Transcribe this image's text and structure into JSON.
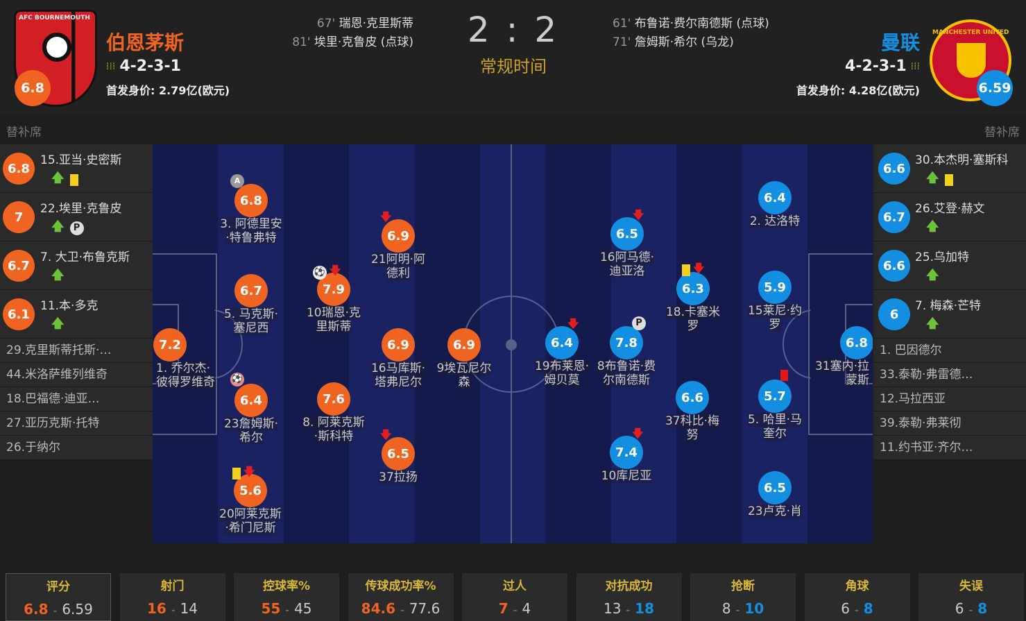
{
  "home": {
    "name": "伯恩茅斯",
    "formation": "4-2-3-1",
    "value": "首发身价: 2.79亿(欧元)",
    "rating": "6.8",
    "crest_text": "AFC BOURNEMOUTH",
    "color": "#ef6420",
    "goals": [
      {
        "min": "67'",
        "text": "瑞恩·克里斯蒂"
      },
      {
        "min": "81'",
        "text": "埃里·克鲁皮 (点球)"
      }
    ]
  },
  "away": {
    "name": "曼联",
    "formation": "4-2-3-1",
    "value": "首发身价: 4.28亿(欧元)",
    "rating": "6.59",
    "crest_text": "MANCHESTER UNITED",
    "color": "#148ee0",
    "goals": [
      {
        "min": "61'",
        "text": "布鲁诺·费尔南德斯 (点球)"
      },
      {
        "min": "71'",
        "text": "詹姆斯·希尔 (乌龙)"
      }
    ]
  },
  "score": {
    "home": "2",
    "sep": ":",
    "away": "2",
    "period": "常规时间"
  },
  "bench_title": "替补席",
  "home_bench": [
    {
      "rating": "6.8",
      "name": "15.亚当·史密斯",
      "icons": [
        "sub-in",
        "yellow-card"
      ]
    },
    {
      "rating": "7",
      "name": "22.埃里·克鲁皮",
      "icons": [
        "sub-in",
        "penalty-goal"
      ]
    },
    {
      "rating": "6.7",
      "name": "7. 大卫·布鲁克斯",
      "icons": [
        "sub-in"
      ]
    },
    {
      "rating": "6.1",
      "name": "11.本·多克",
      "icons": [
        "sub-in"
      ]
    },
    {
      "name": "29.克里斯蒂托斯·…"
    },
    {
      "name": "44.米洛萨维列维奇"
    },
    {
      "name": "18.巴福德·迪亚…"
    },
    {
      "name": "27.亚历克斯·托特"
    },
    {
      "name": "26.于纳尔"
    }
  ],
  "away_bench": [
    {
      "rating": "6.6",
      "name": "30.本杰明·塞斯科",
      "icons": [
        "sub-in",
        "yellow-card"
      ]
    },
    {
      "rating": "6.7",
      "name": "26.艾登·赫文",
      "icons": [
        "sub-in"
      ]
    },
    {
      "rating": "6.6",
      "name": "25.乌加特",
      "icons": [
        "sub-in"
      ]
    },
    {
      "rating": "6",
      "name": "7. 梅森·芒特",
      "icons": [
        "sub-in"
      ]
    },
    {
      "name": "1. 巴因德尔"
    },
    {
      "name": "33.泰勒·弗雷德…"
    },
    {
      "name": "12.马拉西亚"
    },
    {
      "name": "39.泰勒·弗莱彻"
    },
    {
      "name": "11.约书亚·齐尔…"
    }
  ],
  "players": [
    {
      "rating": "6.8",
      "name": "3. 阿德里安·特鲁弗特",
      "icons": [
        "captain"
      ]
    },
    {
      "rating": "6.9",
      "name": "21阿明·阿德利",
      "icons": [
        "sub-off"
      ]
    },
    {
      "rating": "6.7",
      "name": "5. 马克斯·塞尼西"
    },
    {
      "rating": "7.9",
      "name": "10瑞恩·克里斯蒂",
      "icons": [
        "goal",
        "sub-off"
      ]
    },
    {
      "rating": "7.2",
      "name": "1. 乔尔杰·彼得罗维奇"
    },
    {
      "rating": "6.9",
      "name": "16马库斯·塔弗尼尔"
    },
    {
      "rating": "6.9",
      "name": "9埃瓦尼尔森"
    },
    {
      "rating": "6.4",
      "name": "23詹姆斯·希尔",
      "icons": [
        "own-goal"
      ]
    },
    {
      "rating": "7.6",
      "name": "8. 阿莱克斯·斯科特"
    },
    {
      "rating": "6.5",
      "name": "37拉扬",
      "icons": [
        "sub-off"
      ]
    },
    {
      "rating": "5.6",
      "name": "20阿莱克斯·希门尼斯",
      "icons": [
        "yellow-card",
        "sub-off"
      ]
    },
    {
      "rating": "6.4",
      "name": "2. 达洛特"
    },
    {
      "rating": "6.5",
      "name": "16阿马德·迪亚洛",
      "icons": [
        "sub-off"
      ]
    },
    {
      "rating": "6.3",
      "name": "18.卡塞米罗",
      "icons": [
        "yellow-card",
        "sub-off"
      ]
    },
    {
      "rating": "5.9",
      "name": "15莱尼·约罗"
    },
    {
      "rating": "6.4",
      "name": "19布莱恩·姆贝莫",
      "icons": [
        "sub-off"
      ]
    },
    {
      "rating": "7.8",
      "name": "8布鲁诺·费尔南德斯",
      "icons": [
        "penalty-goal"
      ]
    },
    {
      "rating": "6.8",
      "name": "31塞内·拉蒙斯"
    },
    {
      "rating": "6.6",
      "name": "37科比·梅努"
    },
    {
      "rating": "5.7",
      "name": "5. 哈里·马奎尔",
      "icons": [
        "red-card"
      ]
    },
    {
      "rating": "7.4",
      "name": "10库尼亚",
      "icons": [
        "sub-off"
      ]
    },
    {
      "rating": "6.5",
      "name": "23卢克·肖"
    }
  ],
  "stats": [
    {
      "title": "评分",
      "home": "6.8",
      "away": "6.59",
      "lead": "home"
    },
    {
      "title": "射门",
      "home": "16",
      "away": "14",
      "lead": "home"
    },
    {
      "title": "控球率%",
      "home": "55",
      "away": "45",
      "lead": "home"
    },
    {
      "title": "传球成功率%",
      "home": "84.6",
      "away": "77.6",
      "lead": "home"
    },
    {
      "title": "过人",
      "home": "7",
      "away": "4",
      "lead": "home"
    },
    {
      "title": "对抗成功",
      "home": "13",
      "away": "18",
      "lead": "away"
    },
    {
      "title": "抢断",
      "home": "8",
      "away": "10",
      "lead": "away"
    },
    {
      "title": "角球",
      "home": "6",
      "away": "8",
      "lead": "away"
    },
    {
      "title": "失误",
      "home": "6",
      "away": "8",
      "lead": "away"
    }
  ]
}
